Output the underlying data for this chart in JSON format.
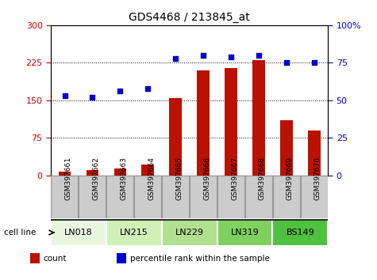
{
  "title": "GDS4468 / 213845_at",
  "samples": [
    "GSM397661",
    "GSM397662",
    "GSM397663",
    "GSM397664",
    "GSM397665",
    "GSM397666",
    "GSM397667",
    "GSM397668",
    "GSM397669",
    "GSM397670"
  ],
  "cell_lines": [
    {
      "name": "LN018",
      "start": 0,
      "end": 1,
      "color": "#e8f8e0"
    },
    {
      "name": "LN215",
      "start": 2,
      "end": 3,
      "color": "#d0f0b8"
    },
    {
      "name": "LN229",
      "start": 4,
      "end": 5,
      "color": "#b0e090"
    },
    {
      "name": "LN319",
      "start": 6,
      "end": 7,
      "color": "#80d060"
    },
    {
      "name": "BS149",
      "start": 8,
      "end": 9,
      "color": "#50c040"
    }
  ],
  "counts": [
    8,
    10,
    14,
    22,
    155,
    210,
    215,
    230,
    110,
    90
  ],
  "percentile_ranks": [
    53,
    52,
    56,
    58,
    78,
    80,
    79,
    80,
    75,
    75
  ],
  "left_ylim": [
    0,
    300
  ],
  "right_ylim": [
    0,
    100
  ],
  "left_yticks": [
    0,
    75,
    150,
    225,
    300
  ],
  "right_yticks": [
    0,
    25,
    50,
    75,
    100
  ],
  "left_tick_color": "#cc0000",
  "right_tick_color": "#0000cc",
  "bar_color": "#bb1100",
  "scatter_color": "#0000cc",
  "dotted_lines": [
    75,
    150,
    225
  ],
  "bg_color": "#ffffff",
  "legend_count_color": "#bb1100",
  "legend_pct_color": "#0000cc",
  "xtick_bg_color": "#cccccc",
  "xtick_border_color": "#999999"
}
